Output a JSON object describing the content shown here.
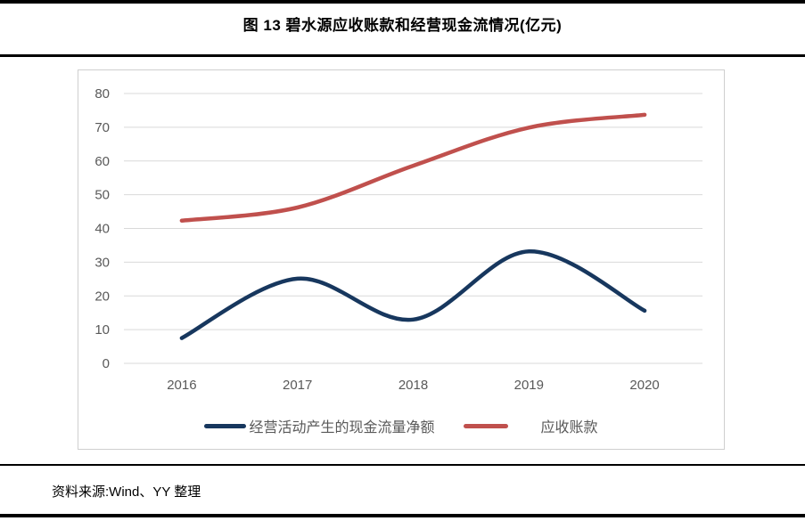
{
  "title": "图 13  碧水源应收账款和经营现金流情况(亿元)",
  "source": "资料来源:Wind、YY 整理",
  "colors": {
    "rule": "#000000",
    "chart_border": "#cfcfcf",
    "gridline": "#d9d9d9",
    "axis_text": "#595959",
    "series_cashflow": "#17375e",
    "series_receivables": "#c0504d"
  },
  "chart_data": {
    "type": "line",
    "smooth": true,
    "categories": [
      "2016",
      "2017",
      "2018",
      "2019",
      "2020"
    ],
    "series": [
      {
        "name": "经营活动产生的现金流量净额",
        "color": "#17375e",
        "values": [
          7.5,
          25.1,
          13.0,
          33.2,
          15.6
        ]
      },
      {
        "name": "应收账款",
        "color": "#c0504d",
        "values": [
          42.3,
          46.2,
          58.6,
          69.9,
          73.7
        ]
      }
    ],
    "title": "图 13  碧水源应收账款和经营现金流情况(亿元)",
    "xlabel": "",
    "ylabel": "",
    "ylim": [
      0,
      80
    ],
    "ytick_step": 10,
    "grid": "horizontal",
    "legend_position": "bottom"
  }
}
